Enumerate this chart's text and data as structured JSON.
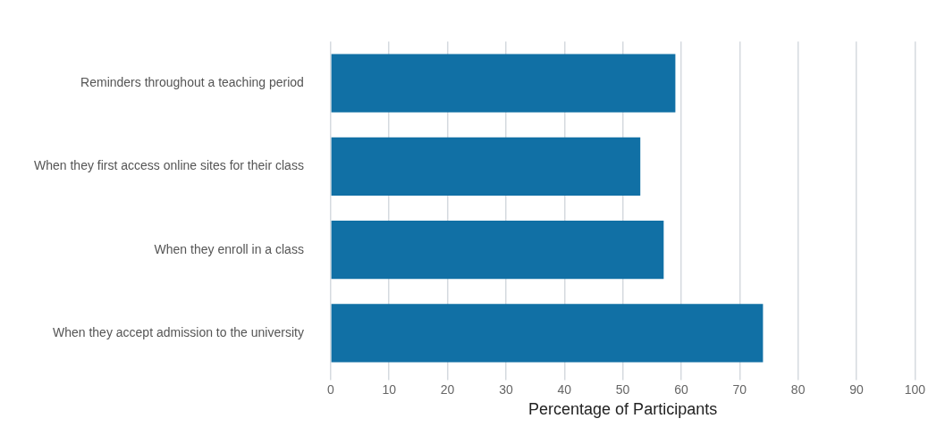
{
  "chart_data": {
    "type": "bar",
    "orientation": "horizontal",
    "xlabel": "Percentage of Participants",
    "categories": [
      "Reminders throughout a teaching period",
      "When they first access online sites for their class",
      "When they enroll in a class",
      "When they accept admission to the university"
    ],
    "values": [
      59,
      53,
      57,
      74
    ],
    "color": "#1170a5",
    "xlim": [
      0,
      100
    ],
    "xticks": [
      0,
      10,
      20,
      30,
      40,
      50,
      60,
      70,
      80,
      90,
      100
    ],
    "grid": "x",
    "legend": false
  }
}
